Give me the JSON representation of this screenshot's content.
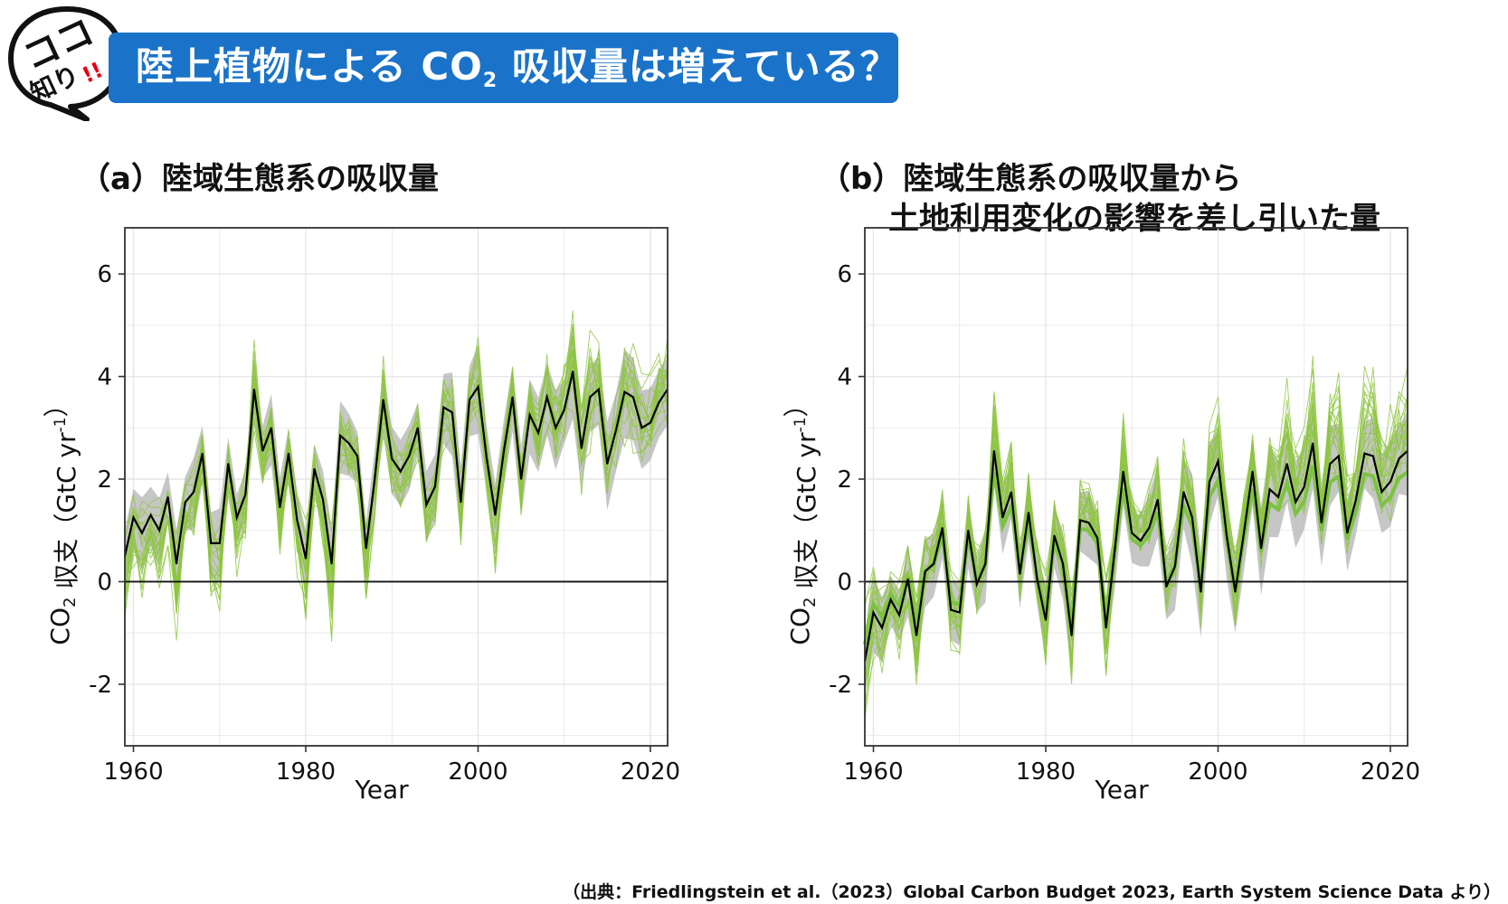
{
  "header": {
    "badge_line1": "ココ",
    "badge_line2": "知り",
    "badge_mark": "!!",
    "title_pre": "陸上植物による CO",
    "title_sub": "2",
    "title_post": " 吸収量は増えている？",
    "colors": {
      "banner": "#1a73c8",
      "badge_mark": "#e60012"
    }
  },
  "source_note": "（出典：Friedlingstein et al.（2023）Global Carbon Budget 2023, Earth System Science Data より）",
  "colors": {
    "model_lines": "#8dc63f",
    "model_mean": "#7cc242",
    "band": "#b3b3b3",
    "budget_line": "#000000",
    "grid": "#e6e6e6"
  },
  "chart_data": [
    {
      "type": "line",
      "title": "（a）陸域生態系の吸収量",
      "xlabel": "Year",
      "ylabel_pre": "CO",
      "ylabel_sub": "2",
      "ylabel_post": " 収支（GtC yr",
      "ylabel_sup": "-1",
      "ylabel_end": "）",
      "xlim": [
        1959,
        2022
      ],
      "ylim": [
        -3.2,
        6.9
      ],
      "xticks": [
        1960,
        1980,
        2000,
        2020
      ],
      "yticks": [
        -2,
        0,
        2,
        4,
        6
      ],
      "grid": true,
      "x_start": 1959,
      "series": [
        {
          "values": [
            0.5,
            1.25,
            0.95,
            1.3,
            1.0,
            1.65,
            0.35,
            1.55,
            1.75,
            2.5,
            0.75,
            0.75,
            2.3,
            1.25,
            1.7,
            3.75,
            2.55,
            3.0,
            1.45,
            2.5,
            1.2,
            0.45,
            2.2,
            1.6,
            0.35,
            2.85,
            2.7,
            2.45,
            0.65,
            2.0,
            3.55,
            2.4,
            2.15,
            2.45,
            3.0,
            1.5,
            1.85,
            3.4,
            3.3,
            1.55,
            3.55,
            3.8,
            2.4,
            1.3,
            2.55,
            3.6,
            2.0,
            3.25,
            2.9,
            3.6,
            3.0,
            3.35,
            4.1,
            2.6,
            3.6,
            3.75,
            2.3,
            2.95,
            3.7,
            3.6,
            3.0,
            3.1,
            3.5,
            3.75
          ]
        }
      ]
    },
    {
      "type": "line",
      "title_line1": "（b）陸域生態系の吸収量から",
      "title_line2": "土地利用変化の影響を差し引いた量",
      "xlabel": "Year",
      "ylabel_pre": "CO",
      "ylabel_sub": "2",
      "ylabel_post": " 収支（GtC yr",
      "ylabel_sup": "-1",
      "ylabel_end": "）",
      "xlim": [
        1959,
        2022
      ],
      "ylim": [
        -3.2,
        6.9
      ],
      "xticks": [
        1960,
        1980,
        2000,
        2020
      ],
      "yticks": [
        -2,
        0,
        2,
        4,
        6
      ],
      "grid": true,
      "x_start": 1959,
      "series": [
        {
          "values": [
            -1.55,
            -0.6,
            -0.9,
            -0.35,
            -0.65,
            0.05,
            -1.05,
            0.2,
            0.35,
            1.05,
            -0.55,
            -0.6,
            1.0,
            -0.05,
            0.35,
            2.55,
            1.25,
            1.75,
            0.15,
            1.35,
            0.05,
            -0.75,
            0.9,
            0.35,
            -1.05,
            1.2,
            1.15,
            0.85,
            -0.9,
            0.6,
            2.15,
            0.95,
            0.8,
            1.05,
            1.6,
            -0.1,
            0.3,
            1.75,
            1.25,
            -0.2,
            1.95,
            2.35,
            0.9,
            -0.2,
            0.95,
            2.15,
            0.65,
            1.8,
            1.65,
            2.3,
            1.55,
            1.85,
            2.7,
            1.15,
            2.3,
            2.45,
            0.95,
            1.6,
            2.5,
            2.45,
            1.75,
            1.95,
            2.4,
            2.55
          ]
        }
      ]
    }
  ]
}
